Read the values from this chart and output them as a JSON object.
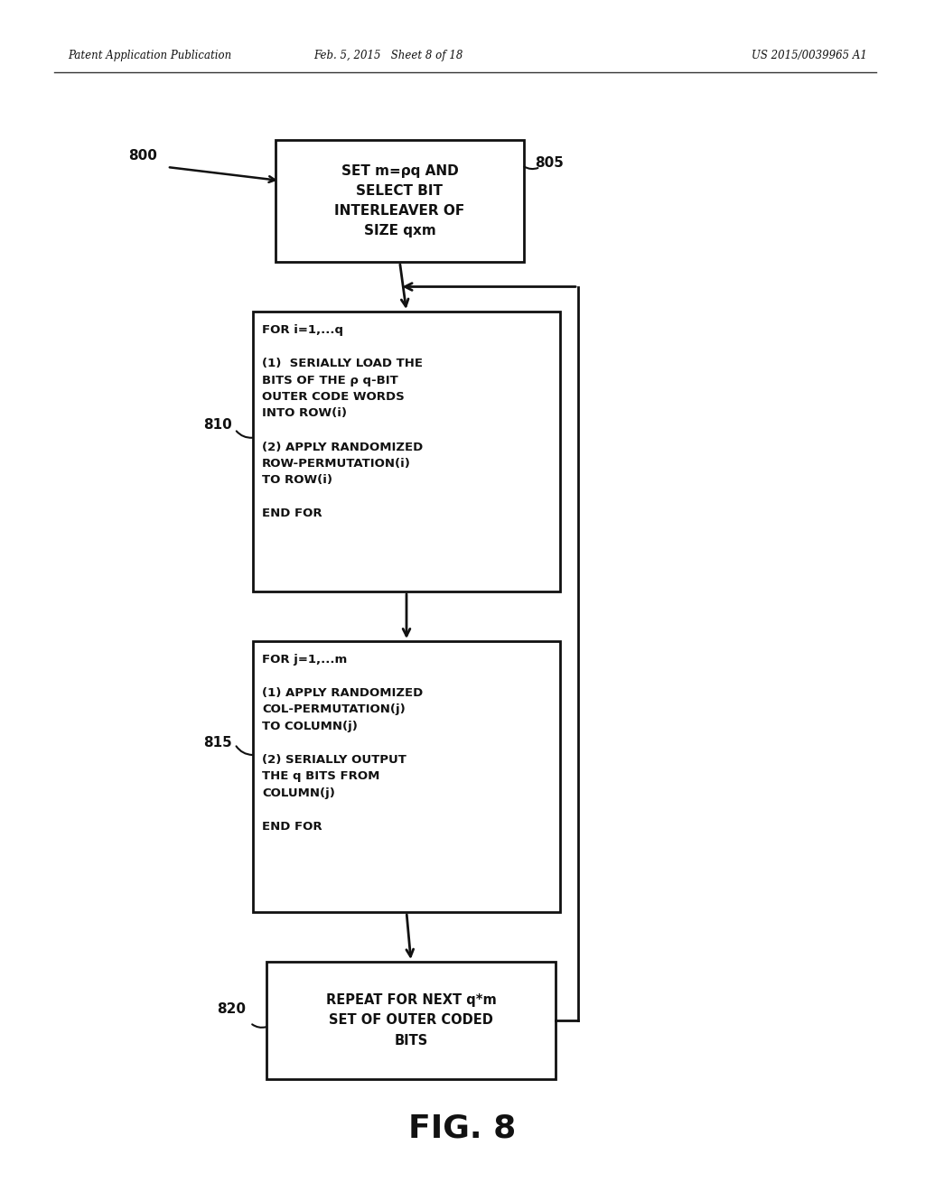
{
  "header_left": "Patent Application Publication",
  "header_mid": "Feb. 5, 2015   Sheet 8 of 18",
  "header_right": "US 2015/0039965 A1",
  "fig_label": "FIG. 8",
  "diagram_label": "800",
  "box1_label": "805",
  "box2_label": "810",
  "box3_label": "815",
  "box4_label": "820",
  "box1_text": "SET m=ρq AND\nSELECT BIT\nINTERLEAVER OF\nSIZE qxm",
  "box2_line1": "FOR i=1,...q",
  "box2_line2": "(1)  SERIALLY LOAD THE\nBITS OF THE ρ q-BIT\nOUTER CODE WORDS\nINTO ROW(i)",
  "box2_line3": "(2) APPLY RANDOMIZED\nROW-PERMUTATION(i)\nTO ROW(i)",
  "box2_line4": "END FOR",
  "box3_line1": "FOR j=1,...m",
  "box3_line2": "(1) APPLY RANDOMIZED\nCOL-PERMUTATION(j)\nTO COLUMN(j)",
  "box3_line3": "(2) SERIALLY OUTPUT\nTHE q BITS FROM\nCOLUMN(j)",
  "box3_line4": "END FOR",
  "box4_text": "REPEAT FOR NEXT q*m\nSET OF OUTER CODED\nBITS",
  "bg_color": "#ffffff",
  "box_edge_color": "#111111",
  "text_color": "#111111",
  "arrow_color": "#111111",
  "header_line_color": "#333333"
}
